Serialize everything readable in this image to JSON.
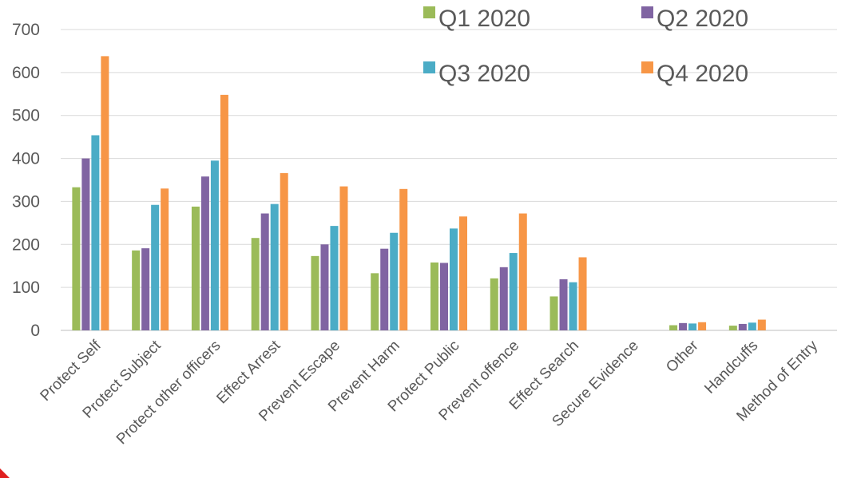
{
  "chart_data": {
    "type": "bar",
    "categories": [
      "Protect Self",
      "Protect Subject",
      "Protect other officers",
      "Effect Arrest",
      "Prevent Escape",
      "Prevent Harm",
      "Protect Public",
      "Prevent offence",
      "Effect Search",
      "Secure Evidence",
      "Other",
      "Handcuffs",
      "Method of Entry"
    ],
    "series": [
      {
        "name": "Q1 2020",
        "color": "#9bbb59",
        "values": [
          333,
          186,
          288,
          215,
          173,
          133,
          158,
          121,
          79,
          0,
          12,
          11,
          0
        ]
      },
      {
        "name": "Q2 2020",
        "color": "#8064a2",
        "values": [
          400,
          191,
          358,
          272,
          200,
          190,
          157,
          147,
          119,
          0,
          17,
          15,
          0
        ]
      },
      {
        "name": "Q3 2020",
        "color": "#4bacc6",
        "values": [
          454,
          292,
          395,
          294,
          243,
          227,
          237,
          180,
          112,
          0,
          16,
          18,
          0
        ]
      },
      {
        "name": "Q4 2020",
        "color": "#f79646",
        "values": [
          638,
          330,
          548,
          366,
          335,
          329,
          265,
          272,
          170,
          0,
          19,
          25,
          0
        ]
      }
    ],
    "yticks": [
      0,
      100,
      200,
      300,
      400,
      500,
      600,
      700
    ],
    "ylim": [
      0,
      700
    ],
    "grid": true,
    "legend_position": "top-right",
    "title": "",
    "xlabel": "",
    "ylabel": ""
  }
}
